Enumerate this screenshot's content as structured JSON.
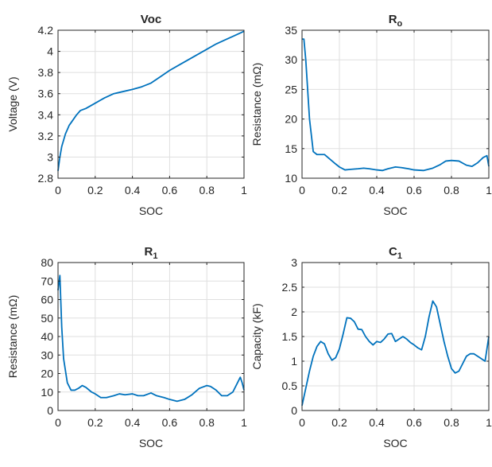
{
  "chart_data": [
    {
      "type": "line",
      "title": "Voc",
      "title_sub": "",
      "xlabel": "SOC",
      "ylabel": "Voltage (V)",
      "xlim": [
        0,
        1
      ],
      "ylim": [
        2.8,
        4.2
      ],
      "xticks": [
        0,
        0.2,
        0.4,
        0.6,
        0.8,
        1
      ],
      "xtick_labels": [
        "0",
        "0.2",
        "0.4",
        "0.6",
        "0.8",
        "1"
      ],
      "yticks": [
        2.8,
        3,
        3.2,
        3.4,
        3.6,
        3.8,
        4,
        4.2
      ],
      "ytick_labels": [
        "2.8",
        "3",
        "3.2",
        "3.4",
        "3.6",
        "3.8",
        "4",
        "4.2"
      ],
      "grid": true,
      "color": "#0072BD",
      "x": [
        0,
        0.01,
        0.02,
        0.04,
        0.06,
        0.08,
        0.1,
        0.12,
        0.15,
        0.2,
        0.25,
        0.3,
        0.35,
        0.4,
        0.45,
        0.5,
        0.55,
        0.6,
        0.65,
        0.7,
        0.75,
        0.8,
        0.85,
        0.9,
        0.95,
        1.0
      ],
      "y": [
        2.87,
        3.0,
        3.1,
        3.22,
        3.3,
        3.35,
        3.4,
        3.44,
        3.46,
        3.51,
        3.56,
        3.6,
        3.62,
        3.64,
        3.665,
        3.7,
        3.76,
        3.82,
        3.87,
        3.92,
        3.97,
        4.02,
        4.07,
        4.11,
        4.15,
        4.19
      ]
    },
    {
      "type": "line",
      "title": "R",
      "title_sub": "o",
      "xlabel": "SOC",
      "ylabel": "Resistance (mΩ)",
      "xlim": [
        0,
        1
      ],
      "ylim": [
        10,
        35
      ],
      "xticks": [
        0,
        0.2,
        0.4,
        0.6,
        0.8,
        1
      ],
      "xtick_labels": [
        "0",
        "0.2",
        "0.4",
        "0.6",
        "0.8",
        "1"
      ],
      "yticks": [
        10,
        15,
        20,
        25,
        30,
        35
      ],
      "ytick_labels": [
        "10",
        "15",
        "20",
        "25",
        "30",
        "35"
      ],
      "grid": true,
      "color": "#0072BD",
      "x": [
        0,
        0.01,
        0.02,
        0.04,
        0.06,
        0.08,
        0.1,
        0.12,
        0.15,
        0.18,
        0.2,
        0.23,
        0.26,
        0.3,
        0.33,
        0.36,
        0.4,
        0.43,
        0.46,
        0.5,
        0.53,
        0.57,
        0.6,
        0.65,
        0.7,
        0.74,
        0.77,
        0.8,
        0.84,
        0.88,
        0.91,
        0.94,
        0.97,
        0.99,
        1.0
      ],
      "y": [
        33.5,
        33.5,
        30,
        20,
        14.5,
        14,
        14,
        14,
        13.2,
        12.4,
        11.9,
        11.4,
        11.5,
        11.6,
        11.7,
        11.6,
        11.4,
        11.3,
        11.6,
        11.9,
        11.8,
        11.6,
        11.4,
        11.3,
        11.7,
        12.3,
        12.9,
        13,
        12.9,
        12.2,
        12.0,
        12.6,
        13.5,
        13.8,
        12.0
      ]
    },
    {
      "type": "line",
      "title": "R",
      "title_sub": "1",
      "xlabel": "SOC",
      "ylabel": "Resistance (mΩ)",
      "xlim": [
        0,
        1
      ],
      "ylim": [
        0,
        80
      ],
      "xticks": [
        0,
        0.2,
        0.4,
        0.6,
        0.8,
        1
      ],
      "xtick_labels": [
        "0",
        "0.2",
        "0.4",
        "0.6",
        "0.8",
        "1"
      ],
      "yticks": [
        0,
        10,
        20,
        30,
        40,
        50,
        60,
        70,
        80
      ],
      "ytick_labels": [
        "0",
        "10",
        "20",
        "30",
        "40",
        "50",
        "60",
        "70",
        "80"
      ],
      "grid": true,
      "color": "#0072BD",
      "x": [
        0,
        0.01,
        0.02,
        0.03,
        0.05,
        0.07,
        0.09,
        0.11,
        0.13,
        0.15,
        0.18,
        0.2,
        0.23,
        0.26,
        0.3,
        0.33,
        0.36,
        0.4,
        0.43,
        0.46,
        0.5,
        0.53,
        0.57,
        0.6,
        0.64,
        0.68,
        0.72,
        0.76,
        0.8,
        0.82,
        0.85,
        0.88,
        0.91,
        0.94,
        0.97,
        0.98,
        0.99,
        1.0
      ],
      "y": [
        65,
        73,
        45,
        28,
        15,
        11,
        11,
        12,
        13.5,
        12.5,
        10,
        9,
        7,
        7,
        8,
        9,
        8.5,
        9,
        8,
        8,
        9.5,
        8,
        7,
        6,
        5,
        6,
        8.5,
        12,
        13.5,
        13,
        11,
        8,
        8,
        10,
        16,
        18,
        15,
        11
      ]
    },
    {
      "type": "line",
      "title": "C",
      "title_sub": "1",
      "xlabel": "SOC",
      "ylabel": "Capacity (kF)",
      "xlim": [
        0,
        1
      ],
      "ylim": [
        0,
        3
      ],
      "xticks": [
        0,
        0.2,
        0.4,
        0.6,
        0.8,
        1
      ],
      "xtick_labels": [
        "0",
        "0.2",
        "0.4",
        "0.6",
        "0.8",
        "1"
      ],
      "yticks": [
        0,
        0.5,
        1,
        1.5,
        2,
        2.5,
        3
      ],
      "ytick_labels": [
        "0",
        "0.5",
        "1",
        "1.5",
        "2",
        "2.5",
        "3"
      ],
      "grid": true,
      "color": "#0072BD",
      "x": [
        0,
        0.02,
        0.04,
        0.06,
        0.08,
        0.1,
        0.12,
        0.14,
        0.16,
        0.18,
        0.2,
        0.22,
        0.24,
        0.26,
        0.28,
        0.3,
        0.32,
        0.34,
        0.36,
        0.38,
        0.4,
        0.42,
        0.44,
        0.46,
        0.48,
        0.5,
        0.52,
        0.54,
        0.56,
        0.58,
        0.6,
        0.62,
        0.64,
        0.66,
        0.68,
        0.7,
        0.72,
        0.74,
        0.76,
        0.78,
        0.8,
        0.82,
        0.84,
        0.86,
        0.88,
        0.9,
        0.92,
        0.94,
        0.96,
        0.98,
        1.0
      ],
      "y": [
        0.1,
        0.45,
        0.8,
        1.1,
        1.3,
        1.4,
        1.35,
        1.15,
        1.02,
        1.07,
        1.25,
        1.55,
        1.88,
        1.87,
        1.8,
        1.65,
        1.64,
        1.5,
        1.4,
        1.33,
        1.4,
        1.38,
        1.45,
        1.55,
        1.56,
        1.4,
        1.45,
        1.5,
        1.45,
        1.38,
        1.33,
        1.27,
        1.23,
        1.5,
        1.9,
        2.22,
        2.1,
        1.75,
        1.4,
        1.1,
        0.85,
        0.76,
        0.8,
        0.95,
        1.1,
        1.15,
        1.15,
        1.1,
        1.05,
        1.0,
        1.5
      ]
    }
  ]
}
